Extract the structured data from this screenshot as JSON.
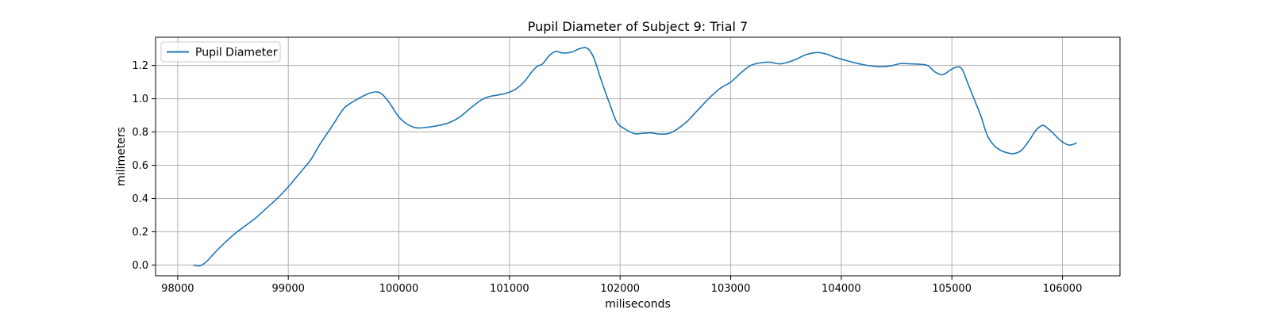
{
  "chart_data": {
    "type": "line",
    "title": "Pupil Diameter of Subject 9: Trial 7",
    "xlabel": "miliseconds",
    "ylabel": "milimeters",
    "xlim": [
      97800,
      106520
    ],
    "ylim": [
      -0.065,
      1.37
    ],
    "xticks": [
      98000,
      99000,
      100000,
      101000,
      102000,
      103000,
      104000,
      105000,
      106000
    ],
    "yticks": [
      0.0,
      0.2,
      0.4,
      0.6,
      0.8,
      1.0,
      1.2
    ],
    "ytick_labels": [
      "0.0",
      "0.2",
      "0.4",
      "0.6",
      "0.8",
      "1.0",
      "1.2"
    ],
    "grid": true,
    "legend_position": "top-left",
    "color": "#1f77b4",
    "series": [
      {
        "name": "Pupil Diameter",
        "x": [
          98140,
          98200,
          98260,
          98330,
          98420,
          98520,
          98620,
          98700,
          98800,
          98900,
          99000,
          99100,
          99200,
          99280,
          99350,
          99420,
          99500,
          99580,
          99660,
          99740,
          99810,
          99860,
          99920,
          100000,
          100080,
          100160,
          100250,
          100350,
          100450,
          100550,
          100650,
          100750,
          100830,
          100900,
          100980,
          101060,
          101130,
          101200,
          101250,
          101300,
          101360,
          101420,
          101480,
          101560,
          101630,
          101700,
          101760,
          101830,
          101900,
          101970,
          102040,
          102130,
          102200,
          102280,
          102350,
          102430,
          102500,
          102600,
          102700,
          102800,
          102900,
          103000,
          103100,
          103180,
          103260,
          103350,
          103440,
          103520,
          103600,
          103680,
          103780,
          103860,
          103940,
          104020,
          104100,
          104200,
          104300,
          104380,
          104460,
          104540,
          104620,
          104700,
          104780,
          104850,
          104920,
          104980,
          105040,
          105090,
          105140,
          105200,
          105260,
          105320,
          105380,
          105440,
          105500,
          105560,
          105630,
          105700,
          105760,
          105820,
          105870,
          105920,
          105980,
          106040,
          106080,
          106130
        ],
        "y": [
          0.0,
          -0.005,
          0.02,
          0.07,
          0.13,
          0.19,
          0.24,
          0.28,
          0.34,
          0.4,
          0.47,
          0.55,
          0.63,
          0.72,
          0.79,
          0.86,
          0.94,
          0.98,
          1.01,
          1.035,
          1.04,
          1.02,
          0.97,
          0.89,
          0.845,
          0.825,
          0.828,
          0.838,
          0.855,
          0.89,
          0.945,
          0.995,
          1.015,
          1.023,
          1.035,
          1.06,
          1.1,
          1.16,
          1.195,
          1.21,
          1.26,
          1.285,
          1.275,
          1.28,
          1.3,
          1.305,
          1.25,
          1.11,
          0.98,
          0.86,
          0.82,
          0.79,
          0.792,
          0.795,
          0.788,
          0.79,
          0.81,
          0.86,
          0.93,
          1.0,
          1.06,
          1.1,
          1.16,
          1.2,
          1.215,
          1.22,
          1.21,
          1.22,
          1.24,
          1.265,
          1.278,
          1.27,
          1.25,
          1.235,
          1.22,
          1.205,
          1.195,
          1.193,
          1.2,
          1.212,
          1.21,
          1.208,
          1.2,
          1.16,
          1.145,
          1.17,
          1.19,
          1.18,
          1.1,
          1.0,
          0.9,
          0.78,
          0.72,
          0.69,
          0.675,
          0.67,
          0.69,
          0.75,
          0.81,
          0.84,
          0.82,
          0.79,
          0.75,
          0.725,
          0.722,
          0.735
        ]
      }
    ]
  }
}
